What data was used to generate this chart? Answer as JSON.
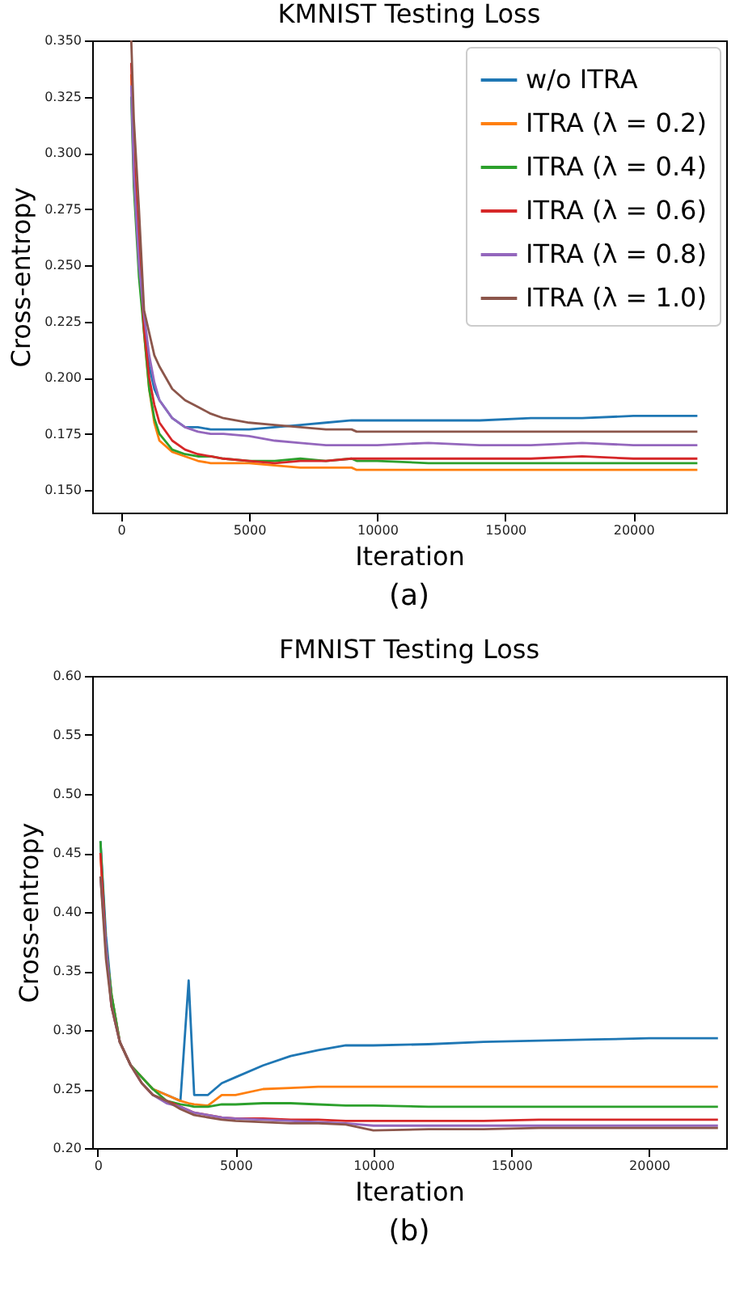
{
  "chart_data": [
    {
      "type": "line",
      "title": "KMNIST Testing Loss",
      "xlabel": "Iteration",
      "ylabel": "Cross-entropy",
      "annotations": [
        "(a)"
      ],
      "x": [
        400,
        500,
        700,
        900,
        1100,
        1300,
        1500,
        2000,
        2500,
        3000,
        3500,
        4000,
        5000,
        6000,
        7000,
        8000,
        9000,
        9200,
        10000,
        12000,
        14000,
        16000,
        18000,
        20000,
        22500
      ],
      "series": [
        {
          "name": "w/o ITRA",
          "color": "#1f77b4",
          "values": [
            null,
            null,
            null,
            0.225,
            0.205,
            0.195,
            0.19,
            0.182,
            0.178,
            0.178,
            0.177,
            0.177,
            0.177,
            0.178,
            0.179,
            0.18,
            0.181,
            0.181,
            0.181,
            0.181,
            0.181,
            0.182,
            0.182,
            0.183,
            0.183
          ]
        },
        {
          "name": "ITRA (λ = 0.2)",
          "color": "#ff7f0e",
          "values": [
            0.335,
            0.295,
            0.255,
            0.22,
            0.195,
            0.18,
            0.172,
            0.167,
            0.165,
            0.163,
            0.162,
            0.162,
            0.162,
            0.161,
            0.16,
            0.16,
            0.16,
            0.159,
            0.159,
            0.159,
            0.159,
            0.159,
            0.159,
            0.159,
            0.159
          ]
        },
        {
          "name": "ITRA (λ = 0.4)",
          "color": "#2ca02c",
          "values": [
            0.325,
            0.285,
            0.245,
            0.22,
            0.195,
            0.182,
            0.175,
            0.168,
            0.166,
            0.165,
            0.165,
            0.164,
            0.163,
            0.163,
            0.164,
            0.163,
            0.164,
            0.163,
            0.163,
            0.162,
            0.162,
            0.162,
            0.162,
            0.162,
            0.162
          ]
        },
        {
          "name": "ITRA (λ = 0.6)",
          "color": "#d62728",
          "values": [
            0.34,
            0.3,
            0.26,
            0.222,
            0.2,
            0.188,
            0.18,
            0.172,
            0.168,
            0.166,
            0.165,
            0.164,
            0.163,
            0.162,
            0.163,
            0.163,
            0.164,
            0.164,
            0.164,
            0.164,
            0.164,
            0.164,
            0.165,
            0.164,
            0.164
          ]
        },
        {
          "name": "ITRA (λ = 0.8)",
          "color": "#9467bd",
          "values": [
            0.33,
            0.29,
            0.25,
            0.228,
            0.21,
            0.198,
            0.19,
            0.182,
            0.178,
            0.176,
            0.175,
            0.175,
            0.174,
            0.172,
            0.171,
            0.17,
            0.17,
            0.17,
            0.17,
            0.171,
            0.17,
            0.17,
            0.171,
            0.17,
            0.17
          ]
        },
        {
          "name": "ITRA (λ = 1.0)",
          "color": "#8c564b",
          "values": [
            0.35,
            0.315,
            0.275,
            0.23,
            0.22,
            0.21,
            0.205,
            0.195,
            0.19,
            0.187,
            0.184,
            0.182,
            0.18,
            0.179,
            0.178,
            0.177,
            0.177,
            0.176,
            0.176,
            0.176,
            0.176,
            0.176,
            0.176,
            0.176,
            0.176
          ]
        }
      ],
      "xlim": [
        -1125,
        23625
      ],
      "xticks": [
        0,
        5000,
        10000,
        15000,
        20000
      ],
      "ylim": [
        0.14,
        0.35
      ],
      "yticks": [
        {
          "value": 0.15,
          "label": "0.150"
        },
        {
          "value": 0.175,
          "label": "0.175"
        },
        {
          "value": 0.2,
          "label": "0.200"
        },
        {
          "value": 0.225,
          "label": "0.225"
        },
        {
          "value": 0.25,
          "label": "0.250"
        },
        {
          "value": 0.275,
          "label": "0.275"
        },
        {
          "value": 0.3,
          "label": "0.300"
        },
        {
          "value": 0.325,
          "label": "0.325"
        },
        {
          "value": 0.35,
          "label": "0.350"
        }
      ],
      "grid": false,
      "legend": "top right"
    },
    {
      "type": "line",
      "title": "FMNIST Testing Loss",
      "xlabel": "Iteration",
      "ylabel": "Cross-entropy",
      "annotations": [
        "(b)"
      ],
      "x": [
        100,
        300,
        500,
        800,
        1200,
        1600,
        2000,
        2500,
        3000,
        3300,
        3500,
        4000,
        4500,
        5000,
        6000,
        7000,
        8000,
        9000,
        10000,
        12000,
        14000,
        16000,
        18000,
        20000,
        22500
      ],
      "series": [
        {
          "name": "w/o ITRA",
          "color": "#1f77b4",
          "values": [
            0.46,
            0.38,
            0.33,
            0.29,
            0.27,
            0.26,
            0.25,
            0.245,
            0.24,
            0.342,
            0.245,
            0.245,
            0.255,
            0.26,
            0.27,
            0.278,
            0.283,
            0.287,
            0.287,
            0.288,
            0.29,
            0.291,
            0.292,
            0.293,
            0.293
          ]
        },
        {
          "name": "ITRA (λ = 0.2)",
          "color": "#ff7f0e",
          "values": [
            0.45,
            0.37,
            0.33,
            0.29,
            0.27,
            0.26,
            0.25,
            0.245,
            0.24,
            0.238,
            0.237,
            0.236,
            0.245,
            0.245,
            0.25,
            0.251,
            0.252,
            0.252,
            0.252,
            0.252,
            0.252,
            0.252,
            0.252,
            0.252,
            0.252
          ]
        },
        {
          "name": "ITRA (λ = 0.4)",
          "color": "#2ca02c",
          "values": [
            0.46,
            0.37,
            0.33,
            0.29,
            0.27,
            0.26,
            0.25,
            0.24,
            0.237,
            0.236,
            0.235,
            0.235,
            0.237,
            0.237,
            0.238,
            0.238,
            0.237,
            0.236,
            0.236,
            0.235,
            0.235,
            0.235,
            0.235,
            0.235,
            0.235
          ]
        },
        {
          "name": "ITRA (λ = 0.6)",
          "color": "#d62728",
          "values": [
            0.45,
            0.37,
            0.32,
            0.29,
            0.27,
            0.255,
            0.245,
            0.24,
            0.235,
            0.232,
            0.23,
            0.228,
            0.226,
            0.225,
            0.225,
            0.224,
            0.224,
            0.223,
            0.223,
            0.223,
            0.223,
            0.224,
            0.224,
            0.224,
            0.224
          ]
        },
        {
          "name": "ITRA (λ = 0.8)",
          "color": "#9467bd",
          "values": [
            0.43,
            0.37,
            0.32,
            0.29,
            0.27,
            0.255,
            0.245,
            0.238,
            0.235,
            0.232,
            0.23,
            0.228,
            0.226,
            0.225,
            0.224,
            0.223,
            0.222,
            0.221,
            0.219,
            0.219,
            0.219,
            0.219,
            0.219,
            0.219,
            0.219
          ]
        },
        {
          "name": "ITRA (λ = 1.0)",
          "color": "#8c564b",
          "values": [
            0.43,
            0.36,
            0.32,
            0.29,
            0.27,
            0.255,
            0.245,
            0.24,
            0.233,
            0.23,
            0.228,
            0.226,
            0.224,
            0.223,
            0.222,
            0.221,
            0.221,
            0.22,
            0.215,
            0.216,
            0.216,
            0.217,
            0.217,
            0.217,
            0.217
          ]
        }
      ],
      "xlim": [
        -200,
        22800
      ],
      "xticks": [
        0,
        5000,
        10000,
        15000,
        20000
      ],
      "ylim": [
        0.2,
        0.6
      ],
      "yticks": [
        {
          "value": 0.2,
          "label": "0.20"
        },
        {
          "value": 0.25,
          "label": "0.25"
        },
        {
          "value": 0.3,
          "label": "0.30"
        },
        {
          "value": 0.35,
          "label": "0.35"
        },
        {
          "value": 0.4,
          "label": "0.40"
        },
        {
          "value": 0.45,
          "label": "0.45"
        },
        {
          "value": 0.5,
          "label": "0.50"
        },
        {
          "value": 0.55,
          "label": "0.55"
        },
        {
          "value": 0.6,
          "label": "0.60"
        }
      ],
      "grid": false,
      "legend": "top right"
    }
  ]
}
